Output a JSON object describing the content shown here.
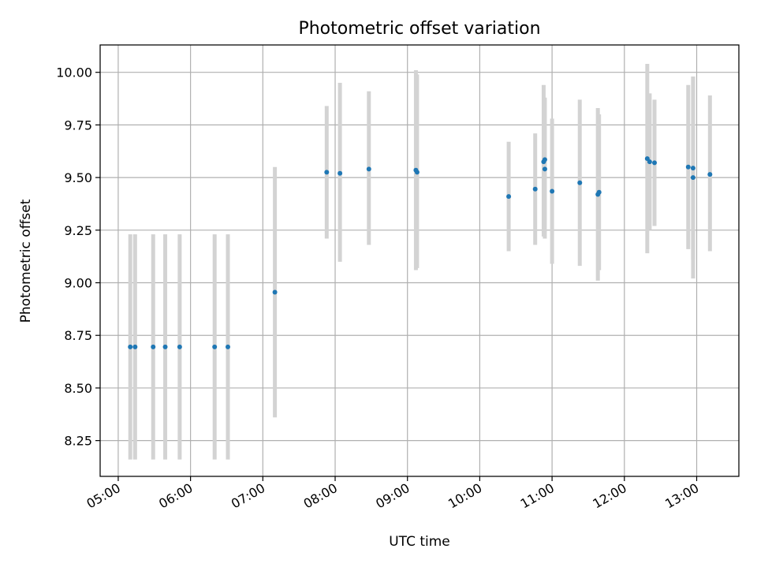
{
  "chart_data": {
    "type": "scatter",
    "title": "Photometric offset variation",
    "xlabel": "UTC time",
    "ylabel": "Photometric offset",
    "x_ticks": [
      "05:00",
      "06:00",
      "07:00",
      "08:00",
      "09:00",
      "10:00",
      "11:00",
      "12:00",
      "13:00"
    ],
    "y_ticks": [
      "8.25",
      "8.50",
      "8.75",
      "9.00",
      "9.25",
      "9.50",
      "9.75",
      "10.00"
    ],
    "xlim": [
      "04:45",
      "13:35"
    ],
    "ylim": [
      8.08,
      10.13
    ],
    "grid": true,
    "colors": {
      "marker": "#1f77b4",
      "errorbar": "#d3d3d3",
      "grid": "#b0b0b0"
    },
    "points": [
      {
        "x": "05:10",
        "y": 8.695,
        "ylow": 8.16,
        "yhigh": 9.23
      },
      {
        "x": "05:14",
        "y": 8.695,
        "ylow": 8.16,
        "yhigh": 9.23
      },
      {
        "x": "05:29",
        "y": 8.695,
        "ylow": 8.16,
        "yhigh": 9.23
      },
      {
        "x": "05:39",
        "y": 8.695,
        "ylow": 8.16,
        "yhigh": 9.23
      },
      {
        "x": "05:51",
        "y": 8.695,
        "ylow": 8.16,
        "yhigh": 9.23
      },
      {
        "x": "06:20",
        "y": 8.695,
        "ylow": 8.16,
        "yhigh": 9.23
      },
      {
        "x": "06:31",
        "y": 8.695,
        "ylow": 8.16,
        "yhigh": 9.23
      },
      {
        "x": "07:10",
        "y": 8.955,
        "ylow": 8.36,
        "yhigh": 9.55
      },
      {
        "x": "07:53",
        "y": 9.525,
        "ylow": 9.21,
        "yhigh": 9.84
      },
      {
        "x": "08:04",
        "y": 9.52,
        "ylow": 9.1,
        "yhigh": 9.95
      },
      {
        "x": "08:28",
        "y": 9.54,
        "ylow": 9.18,
        "yhigh": 9.91
      },
      {
        "x": "09:07",
        "y": 9.535,
        "ylow": 9.06,
        "yhigh": 10.01
      },
      {
        "x": "09:08",
        "y": 9.525,
        "ylow": 9.07,
        "yhigh": 9.99
      },
      {
        "x": "10:24",
        "y": 9.41,
        "ylow": 9.15,
        "yhigh": 9.67
      },
      {
        "x": "10:46",
        "y": 9.445,
        "ylow": 9.18,
        "yhigh": 9.71
      },
      {
        "x": "10:53",
        "y": 9.575,
        "ylow": 9.22,
        "yhigh": 9.94
      },
      {
        "x": "10:54",
        "y": 9.585,
        "ylow": 9.3,
        "yhigh": 9.87
      },
      {
        "x": "10:54",
        "y": 9.54,
        "ylow": 9.21,
        "yhigh": 9.88
      },
      {
        "x": "11:00",
        "y": 9.435,
        "ylow": 9.09,
        "yhigh": 9.78
      },
      {
        "x": "11:23",
        "y": 9.475,
        "ylow": 9.08,
        "yhigh": 9.87
      },
      {
        "x": "11:38",
        "y": 9.42,
        "ylow": 9.01,
        "yhigh": 9.83
      },
      {
        "x": "11:39",
        "y": 9.43,
        "ylow": 9.06,
        "yhigh": 9.8
      },
      {
        "x": "12:19",
        "y": 9.59,
        "ylow": 9.14,
        "yhigh": 10.04
      },
      {
        "x": "12:21",
        "y": 9.575,
        "ylow": 9.25,
        "yhigh": 9.9
      },
      {
        "x": "12:25",
        "y": 9.57,
        "ylow": 9.27,
        "yhigh": 9.87
      },
      {
        "x": "12:53",
        "y": 9.55,
        "ylow": 9.16,
        "yhigh": 9.94
      },
      {
        "x": "12:57",
        "y": 9.545,
        "ylow": 9.11,
        "yhigh": 9.98
      },
      {
        "x": "12:57",
        "y": 9.5,
        "ylow": 9.02,
        "yhigh": 9.98
      },
      {
        "x": "13:11",
        "y": 9.515,
        "ylow": 9.15,
        "yhigh": 9.89
      }
    ]
  }
}
